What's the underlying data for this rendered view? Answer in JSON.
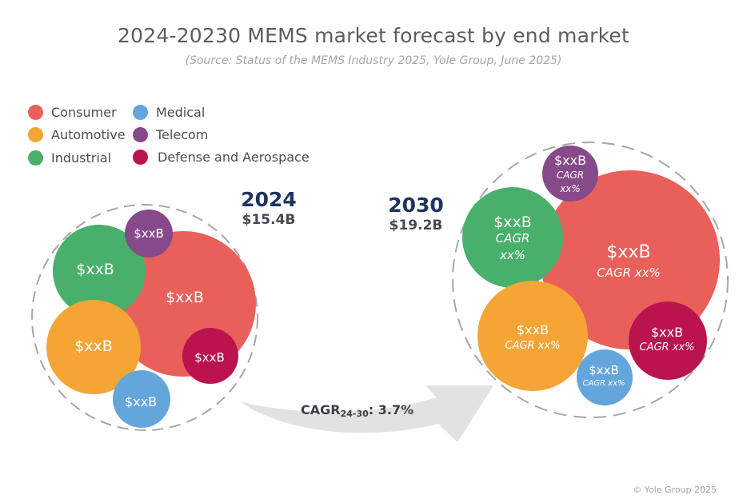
{
  "header": {
    "title": "2024-20230 MEMS market forecast by end market",
    "subtitle": "(Source: Status of the MEMS Industry 2025, Yole Group, June 2025)"
  },
  "legend": [
    {
      "label": "Consumer",
      "color": "#e9605a"
    },
    {
      "label": "Automotive",
      "color": "#f4a535"
    },
    {
      "label": "Industrial",
      "color": "#48b06a"
    },
    {
      "label": "Medical",
      "color": "#64a6dc"
    },
    {
      "label": "Telecom",
      "color": "#86498a"
    },
    {
      "label": "Defense and Aerospace",
      "color": "#bb134e"
    }
  ],
  "years": [
    {
      "year": "2024",
      "total": "$15.4B"
    },
    {
      "year": "2030",
      "total": "$19.2B"
    }
  ],
  "growth": {
    "prefix": "CAGR",
    "subscript": "24-30",
    "value": ": 3.7%"
  },
  "chart_data": {
    "type": "bubble-cluster",
    "title": "2024-20230 MEMS market forecast by end market",
    "subtitle": "(Source: Status of the MEMS Industry 2025, Yole Group, June 2025)",
    "groups": [
      {
        "year": "2024",
        "total_usd_b": 15.4,
        "segments": [
          {
            "market": "Consumer",
            "value_label": "$xxB"
          },
          {
            "market": "Industrial",
            "value_label": "$xxB"
          },
          {
            "market": "Telecom",
            "value_label": "$xxB"
          },
          {
            "market": "Automotive",
            "value_label": "$xxB"
          },
          {
            "market": "Defense and Aerospace",
            "value_label": "$xxB"
          },
          {
            "market": "Medical",
            "value_label": "$xxB"
          }
        ]
      },
      {
        "year": "2030",
        "total_usd_b": 19.2,
        "segments": [
          {
            "market": "Consumer",
            "value_label": "$xxB",
            "cagr_label": "CAGR xx%"
          },
          {
            "market": "Industrial",
            "value_label": "$xxB",
            "cagr_label": "CAGR xx%"
          },
          {
            "market": "Telecom",
            "value_label": "$xxB",
            "cagr_label": "CAGR xx%"
          },
          {
            "market": "Automotive",
            "value_label": "$xxB",
            "cagr_label": "CAGR xx%"
          },
          {
            "market": "Defense and Aerospace",
            "value_label": "$xxB",
            "cagr_label": "CAGR xx%"
          },
          {
            "market": "Medical",
            "value_label": "$xxB",
            "cagr_label": "CAGR xx%"
          }
        ]
      }
    ],
    "cagr_2024_2030_percent": 3.7
  },
  "footer": {
    "copyright": "© Yole Group 2025"
  }
}
